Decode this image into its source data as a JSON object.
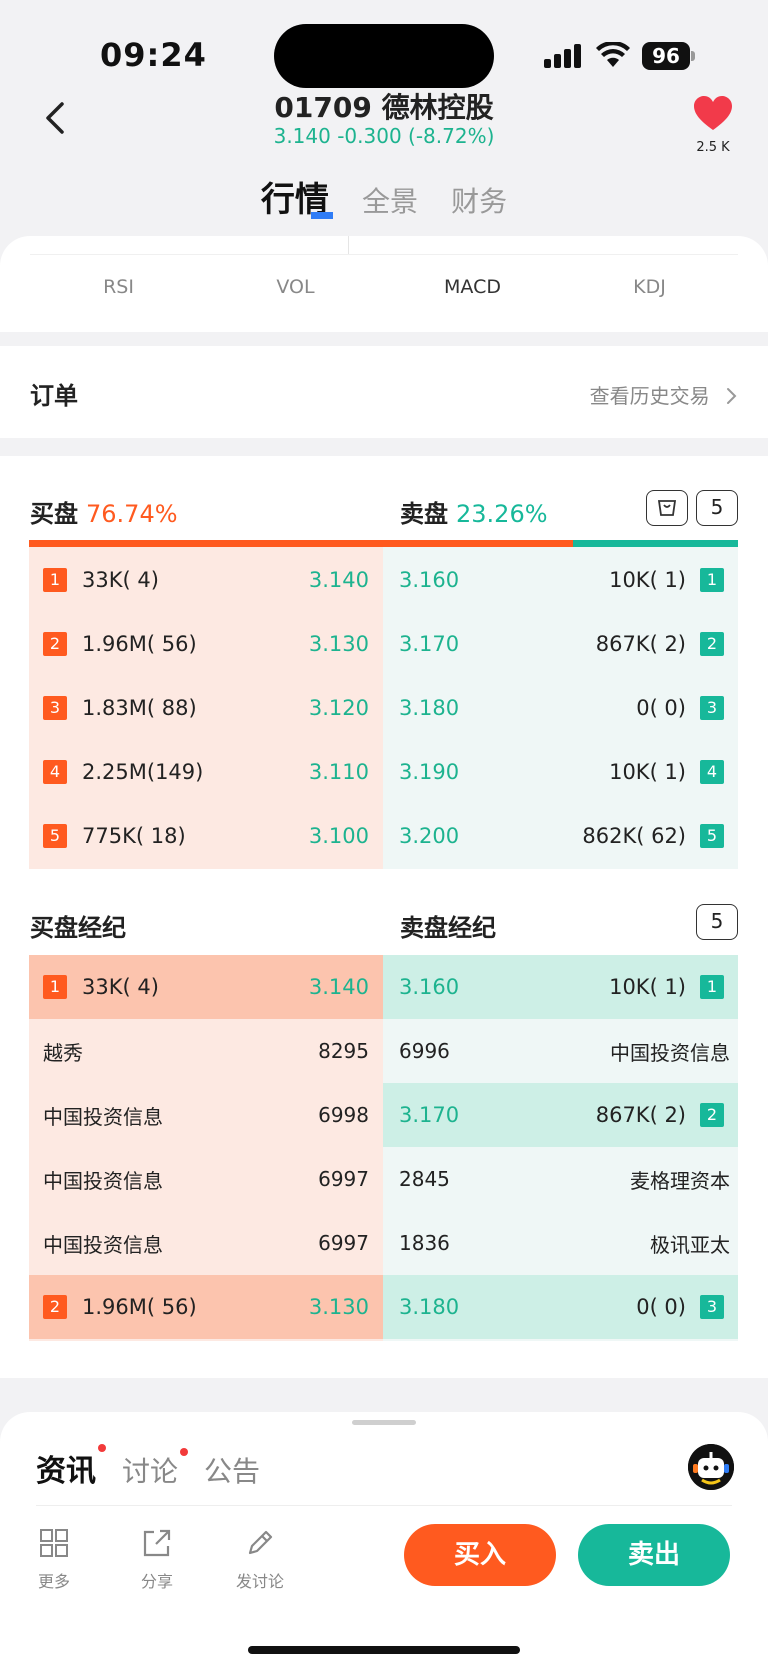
{
  "status": {
    "time": "09:24",
    "battery": "96"
  },
  "header": {
    "title": "01709 德林控股",
    "quote": "3.140 -0.300 (-8.72%)",
    "fav_count": "2.5 K"
  },
  "top_tabs": [
    {
      "label": "行情",
      "active": true
    },
    {
      "label": "全景",
      "active": false
    },
    {
      "label": "财务",
      "active": false
    }
  ],
  "indicator_tabs": [
    {
      "label": "RSI"
    },
    {
      "label": "VOL"
    },
    {
      "label": "MACD"
    },
    {
      "label": "KDJ"
    }
  ],
  "order": {
    "title": "订单",
    "history_link": "查看历史交易"
  },
  "book": {
    "buy_label": "买盘",
    "buy_pct": "76.74%",
    "sell_label": "卖盘",
    "sell_pct": "23.26%",
    "buy_ratio": 0.7674,
    "depth_value": "5",
    "bids": [
      {
        "rank": "1",
        "qty": "33K( 4)",
        "price": "3.140"
      },
      {
        "rank": "2",
        "qty": "1.96M( 56)",
        "price": "3.130"
      },
      {
        "rank": "3",
        "qty": "1.83M( 88)",
        "price": "3.120"
      },
      {
        "rank": "4",
        "qty": "2.25M(149)",
        "price": "3.110"
      },
      {
        "rank": "5",
        "qty": "775K( 18)",
        "price": "3.100"
      }
    ],
    "asks": [
      {
        "rank": "1",
        "qty": "10K( 1)",
        "price": "3.160"
      },
      {
        "rank": "2",
        "qty": "867K( 2)",
        "price": "3.170"
      },
      {
        "rank": "3",
        "qty": "0( 0)",
        "price": "3.180"
      },
      {
        "rank": "4",
        "qty": "10K( 1)",
        "price": "3.190"
      },
      {
        "rank": "5",
        "qty": "862K( 62)",
        "price": "3.200"
      }
    ]
  },
  "brokers": {
    "buy_label": "买盘经纪",
    "sell_label": "卖盘经纪",
    "depth_value": "5",
    "buy": {
      "l1": {
        "rank": "1",
        "qty": "33K( 4)",
        "price": "3.140"
      },
      "names": [
        {
          "name": "越秀",
          "code": "8295"
        },
        {
          "name": "中国投资信息",
          "code": "6998"
        },
        {
          "name": "中国投资信息",
          "code": "6997"
        },
        {
          "name": "中国投资信息",
          "code": "6997"
        }
      ],
      "l2": {
        "rank": "2",
        "qty": "1.96M( 56)",
        "price": "3.130"
      }
    },
    "sell": {
      "l1": {
        "rank": "1",
        "qty": "10K( 1)",
        "price": "3.160"
      },
      "b1": {
        "code": "6996",
        "name": "中国投资信息"
      },
      "l2": {
        "rank": "2",
        "qty": "867K( 2)",
        "price": "3.170"
      },
      "b2": [
        {
          "code": "2845",
          "name": "麦格理资本"
        },
        {
          "code": "1836",
          "name": "极讯亚太"
        }
      ],
      "l3": {
        "rank": "3",
        "qty": "0( 0)",
        "price": "3.180"
      }
    }
  },
  "bottom": {
    "tabs": [
      {
        "label": "资讯"
      },
      {
        "label": "讨论"
      },
      {
        "label": "公告"
      }
    ],
    "tools": [
      {
        "label": "更多",
        "icon": "grid-icon"
      },
      {
        "label": "分享",
        "icon": "share-icon"
      },
      {
        "label": "发讨论",
        "icon": "pencil-icon"
      }
    ],
    "buy_button": "买入",
    "sell_button": "卖出"
  },
  "colors": {
    "buy": "#ff5a1f",
    "sell": "#17b89a",
    "up_down": "#1db38f",
    "accent": "#2f7cf6"
  }
}
